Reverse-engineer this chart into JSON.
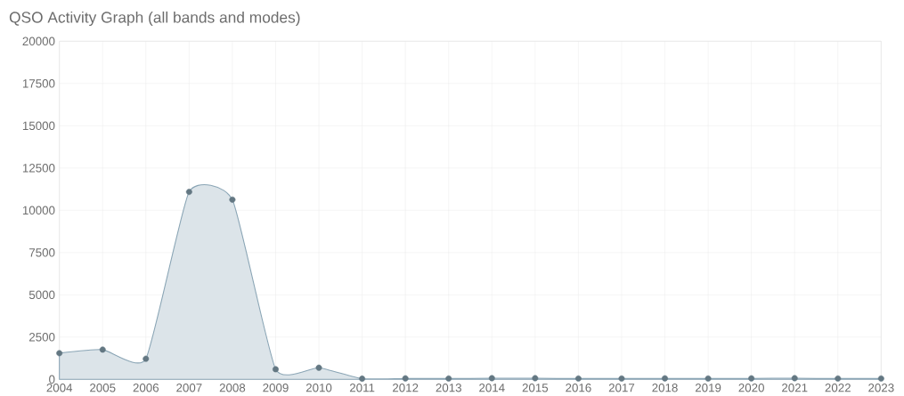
{
  "chart_data": {
    "type": "area",
    "title": "QSO Activity Graph (all bands and modes)",
    "categories": [
      "2004",
      "2005",
      "2006",
      "2007",
      "2008",
      "2009",
      "2010",
      "2011",
      "2012",
      "2013",
      "2014",
      "2015",
      "2016",
      "2017",
      "2018",
      "2019",
      "2020",
      "2021",
      "2022",
      "2023"
    ],
    "series": [
      {
        "color": "#8aa5b5",
        "values": [
          1550,
          1760,
          1220,
          11090,
          10630,
          600,
          690,
          40,
          60,
          50,
          70,
          70,
          50,
          50,
          60,
          50,
          60,
          70,
          50,
          50
        ]
      }
    ],
    "ylim": [
      0,
      20000
    ],
    "yticks": [
      0,
      2500,
      5000,
      7500,
      10000,
      12500,
      15000,
      17500,
      20000
    ],
    "grid": true,
    "marker": "circle"
  }
}
